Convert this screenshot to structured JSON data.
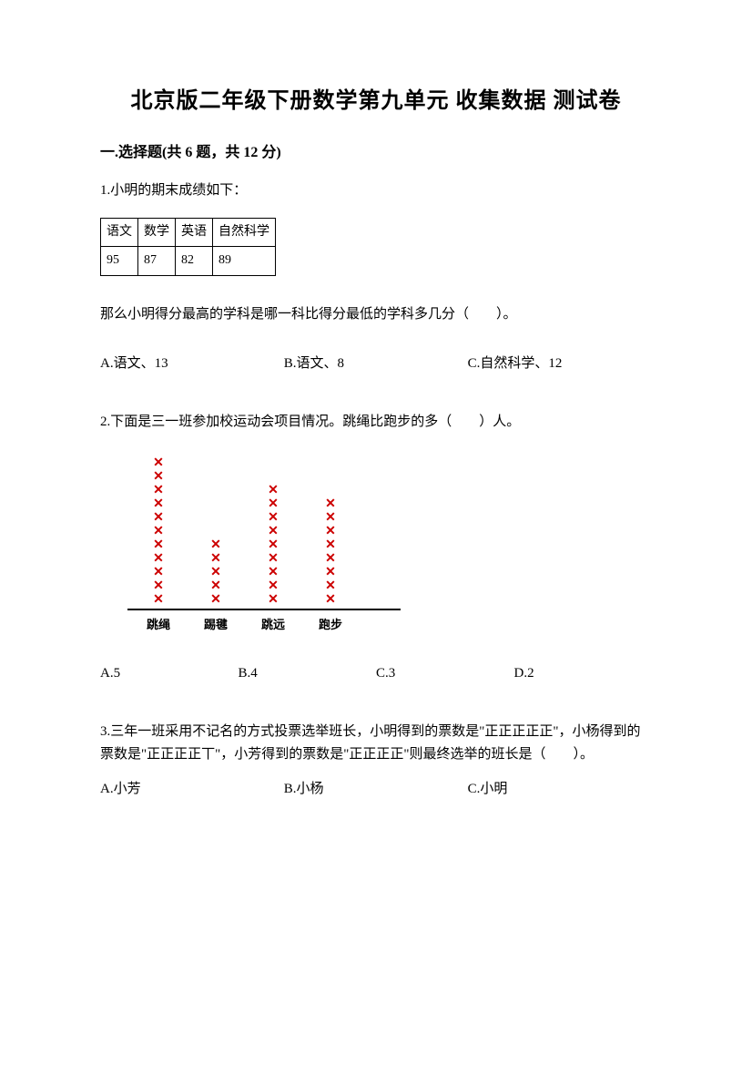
{
  "title": "北京版二年级下册数学第九单元 收集数据 测试卷",
  "section": "一.选择题(共 6 题，共 12 分)",
  "q1": {
    "intro": "1.小明的期末成绩如下：",
    "table": {
      "headers": [
        "语文",
        "数学",
        "英语",
        "自然科学"
      ],
      "values": [
        "95",
        "87",
        "82",
        "89"
      ]
    },
    "prompt": "那么小明得分最高的学科是哪一科比得分最低的学科多几分（　　）。",
    "options": {
      "a": "A.语文、13",
      "b": "B.语文、8",
      "c": "C.自然科学、12"
    }
  },
  "q2": {
    "intro": "2.下面是三一班参加校运动会项目情况。跳绳比跑步的多（　　）人。",
    "chart": {
      "mark_color": "#cc0000",
      "axis_color": "#000000",
      "categories": [
        "跳绳",
        "踢毽",
        "跳远",
        "跑步"
      ],
      "values": [
        11,
        5,
        9,
        8
      ],
      "mark_char": "✕"
    },
    "options": {
      "a": "A.5",
      "b": "B.4",
      "c": "C.3",
      "d": "D.2"
    }
  },
  "q3": {
    "text": "3.三年一班采用不记名的方式投票选举班长，小明得到的票数是\"正正正正正\"，小杨得到的票数是\"正正正正丅\"，小芳得到的票数是\"正正正正\"则最终选举的班长是（　　）。",
    "options": {
      "a": "A.小芳",
      "b": "B.小杨",
      "c": "C.小明"
    }
  }
}
